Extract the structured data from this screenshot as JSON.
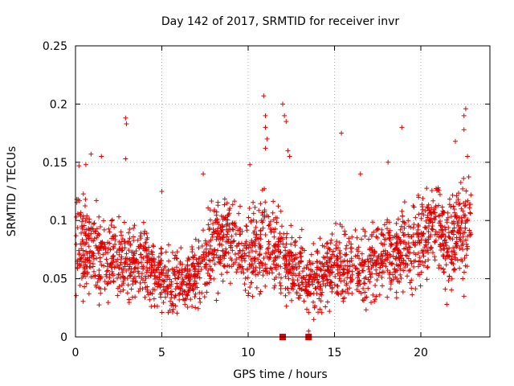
{
  "chart_data": {
    "type": "scatter",
    "title": "Day 142 of 2017, SRMTID for receiver invr",
    "xlabel": "GPS time / hours",
    "ylabel": "SRMTID / TECUs",
    "xlim": [
      0,
      24
    ],
    "ylim": [
      0,
      0.25
    ],
    "xticks": [
      "0",
      "5",
      "10",
      "15",
      "20"
    ],
    "yticks": [
      "0",
      "0.05",
      "0.1",
      "0.15",
      "0.2",
      "0.25"
    ],
    "grid": true,
    "legend": "none",
    "marker": "plus",
    "color": "#e00000",
    "zero_markers": [
      12.0,
      13.5
    ],
    "envelope": {
      "x": [
        0,
        0.5,
        1,
        1.5,
        2,
        2.5,
        3,
        3.5,
        4,
        4.5,
        5,
        5.5,
        6,
        6.5,
        7,
        7.5,
        8,
        8.5,
        9,
        9.5,
        10,
        10.5,
        11,
        11.5,
        12,
        12.5,
        13,
        13.5,
        14,
        14.5,
        15,
        15.5,
        16,
        16.5,
        17,
        17.5,
        18,
        18.5,
        19,
        19.5,
        20,
        20.5,
        21,
        21.5,
        22,
        22.5,
        22.9
      ],
      "mean": [
        0.085,
        0.08,
        0.075,
        0.07,
        0.068,
        0.066,
        0.064,
        0.062,
        0.062,
        0.058,
        0.052,
        0.05,
        0.05,
        0.05,
        0.055,
        0.065,
        0.08,
        0.085,
        0.082,
        0.078,
        0.07,
        0.072,
        0.082,
        0.078,
        0.068,
        0.06,
        0.058,
        0.048,
        0.05,
        0.055,
        0.062,
        0.065,
        0.062,
        0.062,
        0.065,
        0.068,
        0.07,
        0.072,
        0.078,
        0.08,
        0.085,
        0.088,
        0.09,
        0.075,
        0.085,
        0.09,
        0.1
      ],
      "spread": [
        0.028,
        0.028,
        0.025,
        0.025,
        0.025,
        0.025,
        0.025,
        0.022,
        0.022,
        0.02,
        0.018,
        0.018,
        0.018,
        0.018,
        0.02,
        0.024,
        0.026,
        0.026,
        0.026,
        0.026,
        0.026,
        0.026,
        0.028,
        0.026,
        0.024,
        0.022,
        0.022,
        0.02,
        0.02,
        0.02,
        0.022,
        0.022,
        0.022,
        0.022,
        0.022,
        0.022,
        0.022,
        0.024,
        0.024,
        0.024,
        0.026,
        0.026,
        0.026,
        0.024,
        0.026,
        0.026,
        0.03
      ]
    },
    "outliers": [
      {
        "x": 0.2,
        "y": 0.147
      },
      {
        "x": 0.6,
        "y": 0.148
      },
      {
        "x": 0.9,
        "y": 0.157
      },
      {
        "x": 1.5,
        "y": 0.155
      },
      {
        "x": 2.9,
        "y": 0.188
      },
      {
        "x": 2.95,
        "y": 0.183
      },
      {
        "x": 2.9,
        "y": 0.153
      },
      {
        "x": 5.0,
        "y": 0.125
      },
      {
        "x": 7.4,
        "y": 0.14
      },
      {
        "x": 10.1,
        "y": 0.148
      },
      {
        "x": 10.9,
        "y": 0.207
      },
      {
        "x": 11.0,
        "y": 0.19
      },
      {
        "x": 11.0,
        "y": 0.18
      },
      {
        "x": 11.1,
        "y": 0.17
      },
      {
        "x": 11.0,
        "y": 0.162
      },
      {
        "x": 12.0,
        "y": 0.2
      },
      {
        "x": 12.1,
        "y": 0.19
      },
      {
        "x": 12.2,
        "y": 0.185
      },
      {
        "x": 12.3,
        "y": 0.16
      },
      {
        "x": 12.4,
        "y": 0.155
      },
      {
        "x": 15.4,
        "y": 0.175
      },
      {
        "x": 16.5,
        "y": 0.14
      },
      {
        "x": 18.1,
        "y": 0.15
      },
      {
        "x": 18.9,
        "y": 0.18
      },
      {
        "x": 22.0,
        "y": 0.168
      },
      {
        "x": 22.5,
        "y": 0.19
      },
      {
        "x": 22.6,
        "y": 0.196
      },
      {
        "x": 22.5,
        "y": 0.178
      },
      {
        "x": 22.7,
        "y": 0.155
      },
      {
        "x": 22.5,
        "y": 0.035
      },
      {
        "x": 21.5,
        "y": 0.028
      },
      {
        "x": 13.5,
        "y": 0.005
      },
      {
        "x": 13.8,
        "y": 0.015
      },
      {
        "x": 14.6,
        "y": 0.03
      }
    ]
  }
}
